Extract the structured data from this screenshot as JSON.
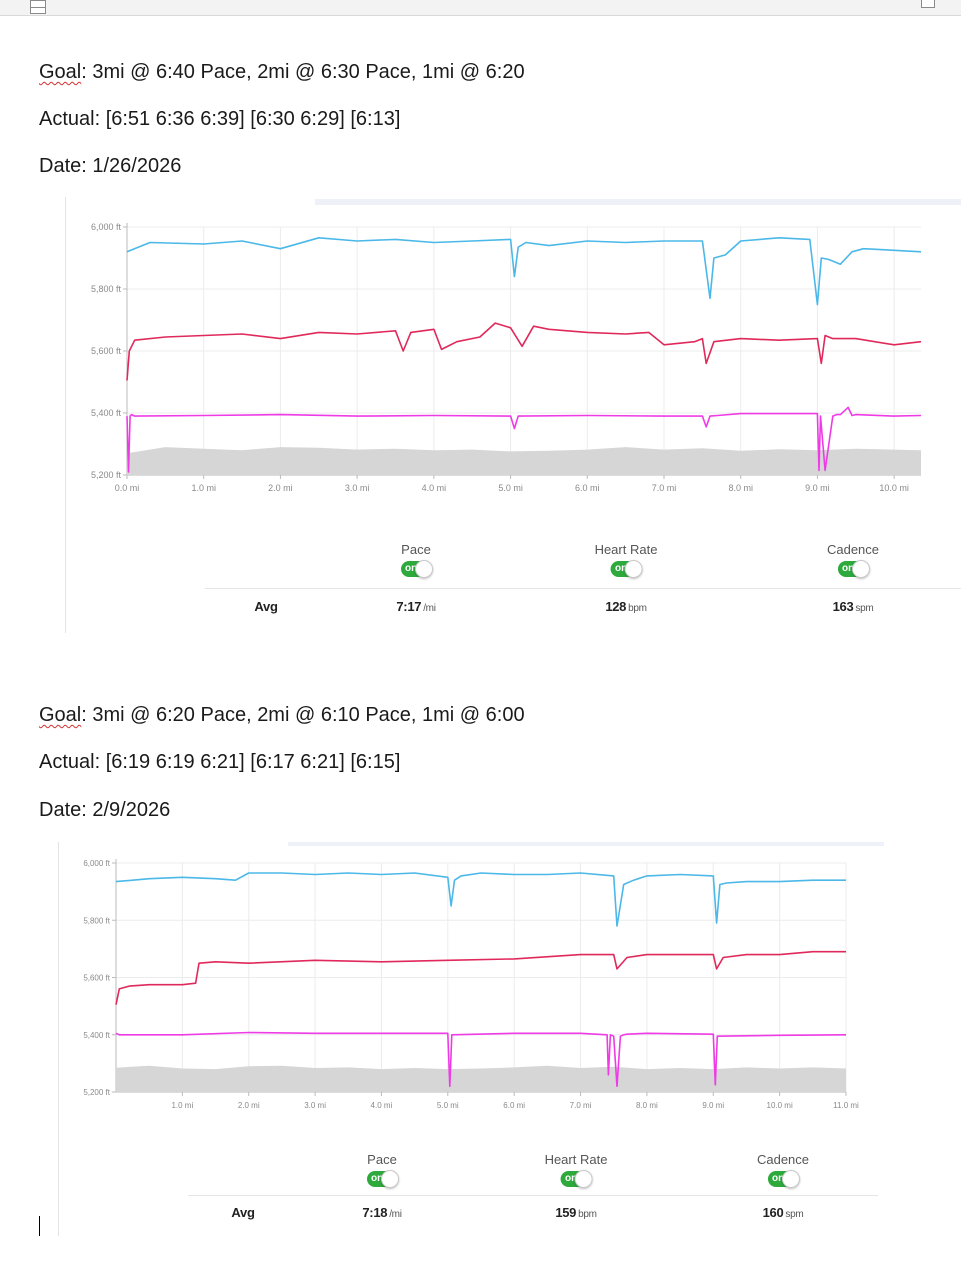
{
  "entries": [
    {
      "goal_label": "Goal",
      "goal_text": ": 3mi @ 6:40 Pace, 2mi @ 6:30 Pace, 1mi @ 6:20",
      "actual": "Actual: [6:51 6:36 6:39] [6:30 6:29] [6:13]",
      "date": "Date: 1/26/2026",
      "chart_data": {
        "type": "line",
        "title": "",
        "y_ticks": [
          "6,000 ft",
          "5,800 ft",
          "5,600 ft",
          "5,400 ft",
          "5,200 ft"
        ],
        "x_ticks": [
          "0.0 mi",
          "1.0 mi",
          "2.0 mi",
          "3.0 mi",
          "4.0 mi",
          "5.0 mi",
          "6.0 mi",
          "7.0 mi",
          "8.0 mi",
          "9.0 mi",
          "10.0 mi"
        ],
        "xlim": [
          0,
          10.35
        ],
        "ylim": [
          5200,
          6000
        ],
        "grid": true,
        "series": [
          {
            "name": "Pace",
            "color": "#4bb8e8",
            "x": [
              0,
              0.3,
              1,
              1.5,
              2,
              2.5,
              3,
              3.5,
              4,
              4.5,
              5,
              5.05,
              5.1,
              5.2,
              5.5,
              6,
              6.5,
              7,
              7.5,
              7.6,
              7.65,
              7.8,
              8,
              8.5,
              8.9,
              9.0,
              9.05,
              9.15,
              9.3,
              9.45,
              9.6,
              10.0,
              10.35
            ],
            "y": [
              5920,
              5950,
              5945,
              5955,
              5930,
              5965,
              5955,
              5960,
              5950,
              5955,
              5960,
              5840,
              5935,
              5950,
              5940,
              5955,
              5950,
              5955,
              5955,
              5770,
              5900,
              5910,
              5955,
              5965,
              5960,
              5750,
              5900,
              5895,
              5880,
              5920,
              5930,
              5925,
              5920
            ]
          },
          {
            "name": "Heart Rate",
            "color": "#e0295b",
            "x": [
              0,
              0.03,
              0.1,
              0.5,
              1,
              1.5,
              2,
              2.5,
              3,
              3.5,
              3.6,
              3.7,
              4.0,
              4.1,
              4.3,
              4.6,
              4.8,
              5.0,
              5.15,
              5.3,
              5.5,
              6,
              6.5,
              6.8,
              7.0,
              7.4,
              7.5,
              7.55,
              7.65,
              8.0,
              8.5,
              9.0,
              9.05,
              9.1,
              9.2,
              9.5,
              10.0,
              10.35
            ],
            "y": [
              5505,
              5600,
              5635,
              5645,
              5650,
              5655,
              5640,
              5660,
              5655,
              5665,
              5600,
              5660,
              5670,
              5605,
              5630,
              5645,
              5690,
              5675,
              5615,
              5680,
              5670,
              5660,
              5655,
              5660,
              5620,
              5630,
              5640,
              5560,
              5630,
              5640,
              5635,
              5640,
              5560,
              5650,
              5640,
              5640,
              5620,
              5630
            ]
          },
          {
            "name": "Cadence",
            "color": "#ee3be6",
            "x": [
              0,
              0.02,
              0.04,
              0.06,
              0.1,
              1,
              2,
              3,
              4,
              5,
              5.05,
              5.1,
              6,
              7,
              7.5,
              7.55,
              7.6,
              7.7,
              8.0,
              9.0,
              9.02,
              9.04,
              9.1,
              9.2,
              9.25,
              9.3,
              9.4,
              9.45,
              9.5,
              10,
              10.35
            ],
            "y": [
              5390,
              5210,
              5390,
              5395,
              5390,
              5392,
              5395,
              5390,
              5392,
              5390,
              5350,
              5390,
              5392,
              5390,
              5390,
              5355,
              5390,
              5392,
              5398,
              5398,
              5215,
              5390,
              5215,
              5390,
              5395,
              5395,
              5418,
              5392,
              5395,
              5390,
              5392
            ]
          },
          {
            "name": "Elevation",
            "color": "#d6d6d6",
            "x": [
              0,
              0.5,
              1,
              1.5,
              2,
              2.5,
              3,
              3.5,
              4,
              4.5,
              5,
              5.5,
              6,
              6.5,
              7,
              7.5,
              8,
              8.5,
              9,
              9.5,
              10,
              10.35
            ],
            "y": [
              5270,
              5290,
              5285,
              5280,
              5290,
              5288,
              5282,
              5285,
              5280,
              5282,
              5276,
              5278,
              5282,
              5290,
              5282,
              5286,
              5278,
              5283,
              5280,
              5285,
              5282,
              5280
            ]
          }
        ]
      },
      "legend": [
        {
          "label": "Pace",
          "toggle": "on"
        },
        {
          "label": "Heart Rate",
          "toggle": "on"
        },
        {
          "label": "Cadence",
          "toggle": "on"
        }
      ],
      "avg": {
        "label": "Avg",
        "pace_value": "7:17",
        "pace_unit": "/mi",
        "hr_value": "128",
        "hr_unit": "bpm",
        "cad_value": "163",
        "cad_unit": "spm"
      }
    },
    {
      "goal_label": "Goal",
      "goal_text": ": 3mi @ 6:20 Pace, 2mi @ 6:10 Pace, 1mi @ 6:00",
      "actual": "Actual: [6:19 6:19 6:21] [6:17 6:21] [6:15]",
      "date": "Date: 2/9/2026",
      "chart_data": {
        "type": "line",
        "title": "",
        "y_ticks": [
          "6,000 ft",
          "5,800 ft",
          "5,600 ft",
          "5,400 ft",
          "5,200 ft"
        ],
        "x_ticks": [
          "1.0 mi",
          "2.0 mi",
          "3.0 mi",
          "4.0 mi",
          "5.0 mi",
          "6.0 mi",
          "7.0 mi",
          "8.0 mi",
          "9.0 mi",
          "10.0 mi",
          "11.0 mi"
        ],
        "xlim": [
          0,
          11.0
        ],
        "ylim": [
          5200,
          6000
        ],
        "grid": true,
        "series": [
          {
            "name": "Pace",
            "color": "#4bb8e8",
            "x": [
              0,
              0.5,
              1,
              1.5,
              1.8,
              2.0,
              2.5,
              3,
              3.5,
              4,
              4.5,
              5.0,
              5.05,
              5.1,
              5.2,
              5.5,
              6,
              6.5,
              7,
              7.5,
              7.55,
              7.65,
              7.8,
              8,
              8.5,
              9.0,
              9.05,
              9.1,
              9.2,
              9.5,
              10,
              10.5,
              11.0
            ],
            "y": [
              5935,
              5945,
              5950,
              5945,
              5940,
              5965,
              5965,
              5960,
              5965,
              5960,
              5965,
              5950,
              5850,
              5940,
              5955,
              5965,
              5960,
              5960,
              5965,
              5955,
              5780,
              5925,
              5940,
              5955,
              5960,
              5955,
              5790,
              5925,
              5930,
              5935,
              5935,
              5940,
              5940
            ]
          },
          {
            "name": "Heart Rate",
            "color": "#e0295b",
            "x": [
              0,
              0.05,
              0.2,
              0.5,
              1,
              1.2,
              1.25,
              1.5,
              2,
              3,
              4,
              5,
              6,
              7,
              7.5,
              7.55,
              7.7,
              8,
              8.5,
              9.0,
              9.05,
              9.15,
              9.5,
              10,
              10.5,
              11.0
            ],
            "y": [
              5505,
              5560,
              5570,
              5575,
              5575,
              5580,
              5650,
              5655,
              5650,
              5660,
              5655,
              5660,
              5665,
              5680,
              5680,
              5630,
              5670,
              5680,
              5680,
              5680,
              5630,
              5670,
              5680,
              5680,
              5690,
              5690
            ]
          },
          {
            "name": "Cadence",
            "color": "#ee3be6",
            "x": [
              0,
              0.05,
              1,
              2,
              3,
              4,
              5,
              5.03,
              5.06,
              6,
              7,
              7.4,
              7.42,
              7.45,
              7.5,
              7.55,
              7.6,
              7.65,
              7.7,
              8,
              9.0,
              9.03,
              9.06,
              10,
              11.0
            ],
            "y": [
              5405,
              5400,
              5400,
              5408,
              5405,
              5405,
              5405,
              5220,
              5400,
              5405,
              5405,
              5400,
              5260,
              5400,
              5395,
              5220,
              5395,
              5400,
              5402,
              5405,
              5402,
              5225,
              5395,
              5398,
              5400
            ]
          },
          {
            "name": "Elevation",
            "color": "#d6d6d6",
            "x": [
              0,
              0.5,
              1,
              1.5,
              2,
              2.5,
              3,
              3.5,
              4,
              4.5,
              5,
              5.5,
              6,
              6.5,
              7,
              7.5,
              8,
              8.5,
              9,
              9.5,
              10,
              10.5,
              11.0
            ],
            "y": [
              5285,
              5292,
              5282,
              5280,
              5290,
              5292,
              5284,
              5286,
              5280,
              5284,
              5280,
              5282,
              5286,
              5292,
              5284,
              5288,
              5280,
              5284,
              5280,
              5286,
              5282,
              5286,
              5282
            ]
          }
        ]
      },
      "legend": [
        {
          "label": "Pace",
          "toggle": "on"
        },
        {
          "label": "Heart Rate",
          "toggle": "on"
        },
        {
          "label": "Cadence",
          "toggle": "on"
        }
      ],
      "avg": {
        "label": "Avg",
        "pace_value": "7:18",
        "pace_unit": "/mi",
        "hr_value": "159",
        "hr_unit": "bpm",
        "cad_value": "160",
        "cad_unit": "spm"
      }
    }
  ]
}
